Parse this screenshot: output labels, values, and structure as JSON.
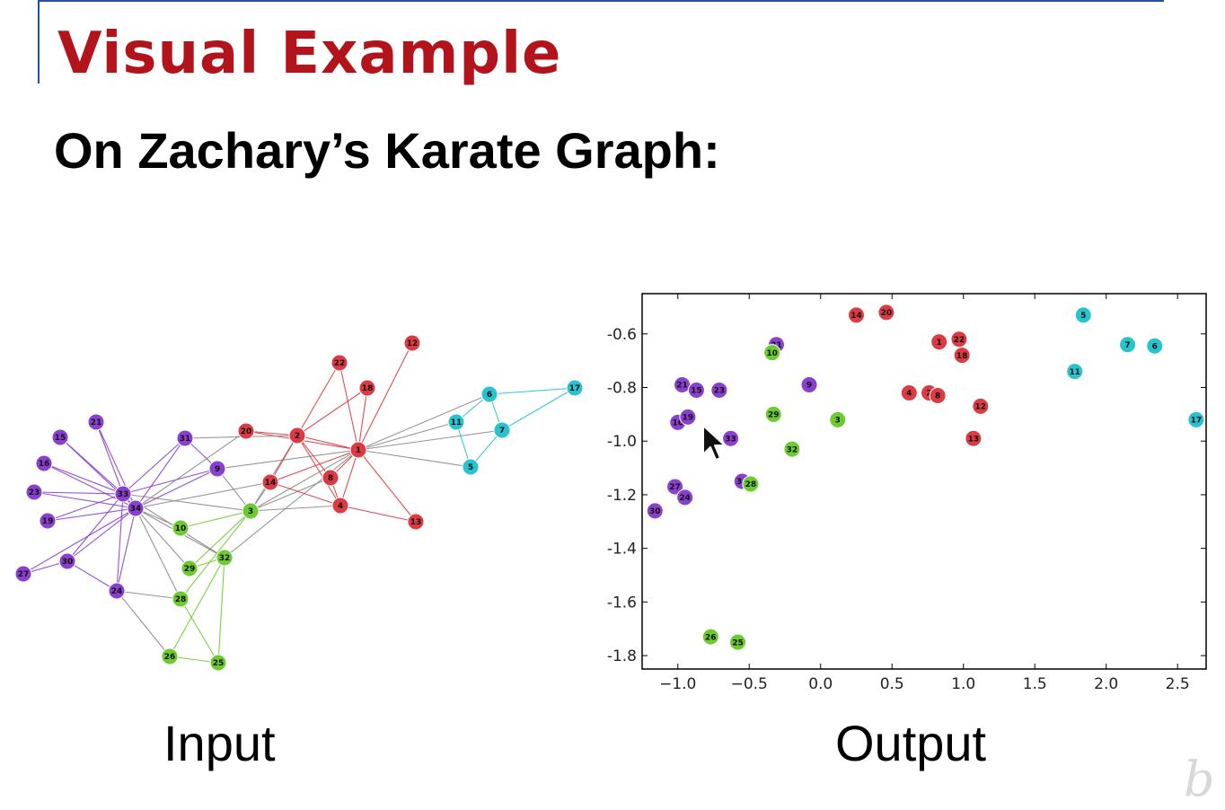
{
  "slide": {
    "title": "Visual Example",
    "subtitle": "On Zachary’s Karate Graph:",
    "input_caption": "Input",
    "output_caption": "Output",
    "watermark": "b",
    "colors": {
      "title": "#b3141c",
      "rule": "#2a4ea1",
      "purple": "#8a3fcf",
      "red": "#dd3b44",
      "green": "#6ccb2e",
      "cyan": "#27c3cf"
    }
  },
  "graph": {
    "nodes": [
      {
        "id": "1",
        "group": "red"
      },
      {
        "id": "2",
        "group": "red"
      },
      {
        "id": "3",
        "group": "green"
      },
      {
        "id": "4",
        "group": "red"
      },
      {
        "id": "5",
        "group": "cyan"
      },
      {
        "id": "6",
        "group": "cyan"
      },
      {
        "id": "7",
        "group": "cyan"
      },
      {
        "id": "8",
        "group": "red"
      },
      {
        "id": "9",
        "group": "purple"
      },
      {
        "id": "10",
        "group": "green"
      },
      {
        "id": "11",
        "group": "cyan"
      },
      {
        "id": "12",
        "group": "red"
      },
      {
        "id": "13",
        "group": "red"
      },
      {
        "id": "14",
        "group": "red"
      },
      {
        "id": "15",
        "group": "purple"
      },
      {
        "id": "16",
        "group": "purple"
      },
      {
        "id": "17",
        "group": "cyan"
      },
      {
        "id": "18",
        "group": "red"
      },
      {
        "id": "19",
        "group": "purple"
      },
      {
        "id": "20",
        "group": "red"
      },
      {
        "id": "21",
        "group": "purple"
      },
      {
        "id": "22",
        "group": "red"
      },
      {
        "id": "23",
        "group": "purple"
      },
      {
        "id": "24",
        "group": "purple"
      },
      {
        "id": "25",
        "group": "green"
      },
      {
        "id": "26",
        "group": "green"
      },
      {
        "id": "27",
        "group": "purple"
      },
      {
        "id": "28",
        "group": "green"
      },
      {
        "id": "29",
        "group": "green"
      },
      {
        "id": "30",
        "group": "purple"
      },
      {
        "id": "31",
        "group": "purple"
      },
      {
        "id": "32",
        "group": "green"
      },
      {
        "id": "33",
        "group": "purple"
      },
      {
        "id": "34",
        "group": "purple"
      }
    ],
    "edges": [
      [
        "1",
        "2"
      ],
      [
        "1",
        "3"
      ],
      [
        "1",
        "4"
      ],
      [
        "1",
        "5"
      ],
      [
        "1",
        "6"
      ],
      [
        "1",
        "7"
      ],
      [
        "1",
        "8"
      ],
      [
        "1",
        "9"
      ],
      [
        "1",
        "11"
      ],
      [
        "1",
        "12"
      ],
      [
        "1",
        "13"
      ],
      [
        "1",
        "14"
      ],
      [
        "1",
        "18"
      ],
      [
        "1",
        "20"
      ],
      [
        "1",
        "22"
      ],
      [
        "1",
        "32"
      ],
      [
        "2",
        "3"
      ],
      [
        "2",
        "4"
      ],
      [
        "2",
        "8"
      ],
      [
        "2",
        "14"
      ],
      [
        "2",
        "18"
      ],
      [
        "2",
        "20"
      ],
      [
        "2",
        "22"
      ],
      [
        "2",
        "31"
      ],
      [
        "3",
        "4"
      ],
      [
        "3",
        "8"
      ],
      [
        "3",
        "9"
      ],
      [
        "3",
        "10"
      ],
      [
        "3",
        "14"
      ],
      [
        "3",
        "28"
      ],
      [
        "3",
        "29"
      ],
      [
        "3",
        "33"
      ],
      [
        "4",
        "8"
      ],
      [
        "4",
        "13"
      ],
      [
        "4",
        "14"
      ],
      [
        "5",
        "7"
      ],
      [
        "5",
        "11"
      ],
      [
        "6",
        "7"
      ],
      [
        "6",
        "11"
      ],
      [
        "6",
        "17"
      ],
      [
        "7",
        "17"
      ],
      [
        "9",
        "31"
      ],
      [
        "9",
        "33"
      ],
      [
        "9",
        "34"
      ],
      [
        "10",
        "34"
      ],
      [
        "14",
        "34"
      ],
      [
        "15",
        "33"
      ],
      [
        "15",
        "34"
      ],
      [
        "16",
        "33"
      ],
      [
        "16",
        "34"
      ],
      [
        "19",
        "33"
      ],
      [
        "19",
        "34"
      ],
      [
        "20",
        "34"
      ],
      [
        "21",
        "33"
      ],
      [
        "21",
        "34"
      ],
      [
        "23",
        "33"
      ],
      [
        "23",
        "34"
      ],
      [
        "24",
        "26"
      ],
      [
        "24",
        "28"
      ],
      [
        "24",
        "30"
      ],
      [
        "24",
        "33"
      ],
      [
        "24",
        "34"
      ],
      [
        "25",
        "26"
      ],
      [
        "25",
        "28"
      ],
      [
        "25",
        "32"
      ],
      [
        "26",
        "32"
      ],
      [
        "27",
        "30"
      ],
      [
        "27",
        "34"
      ],
      [
        "28",
        "34"
      ],
      [
        "29",
        "32"
      ],
      [
        "29",
        "34"
      ],
      [
        "30",
        "33"
      ],
      [
        "30",
        "34"
      ],
      [
        "31",
        "33"
      ],
      [
        "31",
        "34"
      ],
      [
        "32",
        "33"
      ],
      [
        "32",
        "34"
      ],
      [
        "33",
        "34"
      ]
    ]
  },
  "chart_data": {
    "type": "scatter",
    "title": "",
    "xlabel": "",
    "ylabel": "",
    "xlim": [
      -1.25,
      2.7
    ],
    "ylim": [
      -1.85,
      -0.45
    ],
    "x_ticks": [
      -1.0,
      -0.5,
      0.0,
      0.5,
      1.0,
      1.5,
      2.0,
      2.5
    ],
    "x_tick_labels": [
      "−1.0",
      "−0.5",
      "0.0",
      "0.5",
      "1.0",
      "1.5",
      "2.0",
      "2.5"
    ],
    "y_ticks": [
      -0.6,
      -0.8,
      -1.0,
      -1.2,
      -1.4,
      -1.6,
      -1.8
    ],
    "y_tick_labels": [
      "-0.6",
      "-0.8",
      "-1.0",
      "-1.2",
      "-1.4",
      "-1.6",
      "-1.8"
    ],
    "grid": false,
    "points": [
      {
        "label": "14",
        "x": 0.25,
        "y": -0.53,
        "group": "red"
      },
      {
        "label": "20",
        "x": 0.46,
        "y": -0.52,
        "group": "red"
      },
      {
        "label": "1",
        "x": 0.83,
        "y": -0.63,
        "group": "red"
      },
      {
        "label": "22",
        "x": 0.97,
        "y": -0.62,
        "group": "red"
      },
      {
        "label": "18",
        "x": 0.99,
        "y": -0.68,
        "group": "red"
      },
      {
        "label": "4",
        "x": 0.62,
        "y": -0.82,
        "group": "red"
      },
      {
        "label": "2",
        "x": 0.76,
        "y": -0.82,
        "group": "red"
      },
      {
        "label": "8",
        "x": 0.82,
        "y": -0.83,
        "group": "red"
      },
      {
        "label": "12",
        "x": 1.12,
        "y": -0.87,
        "group": "red"
      },
      {
        "label": "13",
        "x": 1.07,
        "y": -0.99,
        "group": "red"
      },
      {
        "label": "5",
        "x": 1.84,
        "y": -0.53,
        "group": "cyan"
      },
      {
        "label": "7",
        "x": 2.15,
        "y": -0.64,
        "group": "cyan"
      },
      {
        "label": "6",
        "x": 2.34,
        "y": -0.645,
        "group": "cyan"
      },
      {
        "label": "11",
        "x": 1.78,
        "y": -0.74,
        "group": "cyan"
      },
      {
        "label": "17",
        "x": 2.63,
        "y": -0.92,
        "group": "cyan"
      },
      {
        "label": "31",
        "x": -0.31,
        "y": -0.64,
        "group": "purple"
      },
      {
        "label": "9",
        "x": -0.08,
        "y": -0.79,
        "group": "purple"
      },
      {
        "label": "21",
        "x": -0.97,
        "y": -0.79,
        "group": "purple"
      },
      {
        "label": "15",
        "x": -0.87,
        "y": -0.81,
        "group": "purple"
      },
      {
        "label": "23",
        "x": -0.71,
        "y": -0.81,
        "group": "purple"
      },
      {
        "label": "16",
        "x": -1.0,
        "y": -0.93,
        "group": "purple"
      },
      {
        "label": "19",
        "x": -0.93,
        "y": -0.91,
        "group": "purple"
      },
      {
        "label": "33",
        "x": -0.63,
        "y": -0.99,
        "group": "purple"
      },
      {
        "label": "34",
        "x": -0.55,
        "y": -1.15,
        "group": "purple"
      },
      {
        "label": "27",
        "x": -1.02,
        "y": -1.17,
        "group": "purple"
      },
      {
        "label": "24",
        "x": -0.95,
        "y": -1.21,
        "group": "purple"
      },
      {
        "label": "30",
        "x": -1.16,
        "y": -1.26,
        "group": "purple"
      },
      {
        "label": "10",
        "x": -0.34,
        "y": -0.67,
        "group": "green"
      },
      {
        "label": "29",
        "x": -0.33,
        "y": -0.9,
        "group": "green"
      },
      {
        "label": "3",
        "x": 0.12,
        "y": -0.92,
        "group": "green"
      },
      {
        "label": "32",
        "x": -0.2,
        "y": -1.03,
        "group": "green"
      },
      {
        "label": "28",
        "x": -0.49,
        "y": -1.16,
        "group": "green"
      },
      {
        "label": "26",
        "x": -0.77,
        "y": -1.73,
        "group": "green"
      },
      {
        "label": "25",
        "x": -0.58,
        "y": -1.75,
        "group": "green"
      }
    ]
  }
}
